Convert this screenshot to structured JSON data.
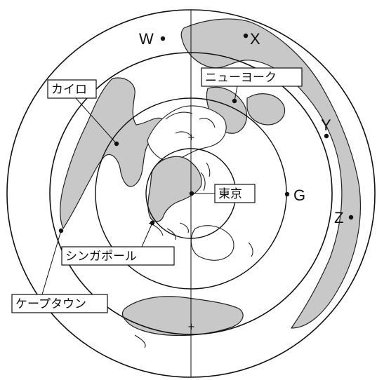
{
  "map": {
    "city_labels": {
      "cairo": "カイロ",
      "new_york": "ニューヨーク",
      "tokyo": "東京",
      "singapore": "シンガポール",
      "cape_town": "ケープタウン"
    },
    "point_labels": {
      "w": "W",
      "x": "X",
      "y": "Y",
      "z": "Z",
      "g": "G"
    },
    "colors": {
      "land": "#c8c8c8",
      "outline": "#111111"
    }
  }
}
